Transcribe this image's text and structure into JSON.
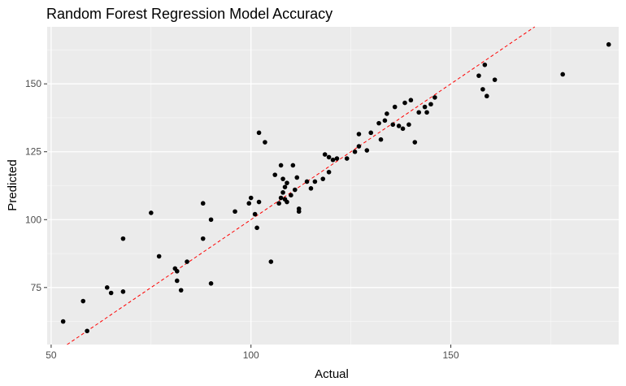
{
  "chart_data": {
    "type": "scatter",
    "title": "Random Forest Regression Model Accuracy",
    "xlabel": "Actual",
    "ylabel": "Predicted",
    "xlim": [
      49,
      192
    ],
    "ylim": [
      54,
      171
    ],
    "x_ticks": [
      50,
      100,
      150
    ],
    "y_ticks": [
      75,
      100,
      125,
      150
    ],
    "grid": true,
    "background": "#ebebeb",
    "gridline_color": "#ffffff",
    "point_color": "#000000",
    "reference_line": {
      "slope": 1,
      "intercept": 0,
      "color": "#ff0000",
      "style": "dashed"
    },
    "points": [
      [
        53,
        62.5
      ],
      [
        58,
        70
      ],
      [
        59,
        59
      ],
      [
        64,
        75
      ],
      [
        65,
        73
      ],
      [
        68,
        93
      ],
      [
        68,
        73.5
      ],
      [
        75,
        102.5
      ],
      [
        77,
        86.5
      ],
      [
        81,
        82
      ],
      [
        81.5,
        81
      ],
      [
        81.5,
        77.5
      ],
      [
        82.5,
        74
      ],
      [
        84,
        84.5
      ],
      [
        88,
        106
      ],
      [
        88,
        93
      ],
      [
        90,
        100
      ],
      [
        90,
        76.5
      ],
      [
        96,
        103
      ],
      [
        99.5,
        106
      ],
      [
        100,
        108
      ],
      [
        101,
        102
      ],
      [
        101.5,
        97
      ],
      [
        102,
        106.5
      ],
      [
        102,
        132
      ],
      [
        103.5,
        128.5
      ],
      [
        105,
        84.5
      ],
      [
        106,
        116.5
      ],
      [
        107,
        106
      ],
      [
        107.5,
        120
      ],
      [
        107.5,
        108
      ],
      [
        108,
        115
      ],
      [
        108,
        110
      ],
      [
        108.5,
        112
      ],
      [
        108.5,
        107.5
      ],
      [
        109,
        113.5
      ],
      [
        109,
        106.5
      ],
      [
        110,
        109
      ],
      [
        110.5,
        120
      ],
      [
        111,
        111
      ],
      [
        111.5,
        115.5
      ],
      [
        112,
        104
      ],
      [
        112,
        103
      ],
      [
        114,
        114
      ],
      [
        115,
        111.5
      ],
      [
        116,
        114
      ],
      [
        118,
        115
      ],
      [
        118.5,
        124
      ],
      [
        119.5,
        117.5
      ],
      [
        119.5,
        123
      ],
      [
        120.5,
        122
      ],
      [
        121.5,
        122.5
      ],
      [
        124,
        122.5
      ],
      [
        126,
        125
      ],
      [
        127,
        131.5
      ],
      [
        127,
        127
      ],
      [
        129,
        125.5
      ],
      [
        130,
        132
      ],
      [
        132,
        135.5
      ],
      [
        132.5,
        129.5
      ],
      [
        133.5,
        136.5
      ],
      [
        134,
        139
      ],
      [
        135.5,
        135
      ],
      [
        136,
        141.5
      ],
      [
        137,
        134.5
      ],
      [
        138,
        133.5
      ],
      [
        138.5,
        143
      ],
      [
        139.5,
        135
      ],
      [
        140,
        144
      ],
      [
        141,
        128.5
      ],
      [
        142,
        139.5
      ],
      [
        143.5,
        141.5
      ],
      [
        144,
        139.5
      ],
      [
        145,
        142.5
      ],
      [
        146,
        145
      ],
      [
        157,
        153
      ],
      [
        158,
        148
      ],
      [
        158.5,
        157
      ],
      [
        159,
        145.5
      ],
      [
        161,
        151.5
      ],
      [
        178,
        153.5
      ],
      [
        189.5,
        164.5
      ]
    ]
  }
}
